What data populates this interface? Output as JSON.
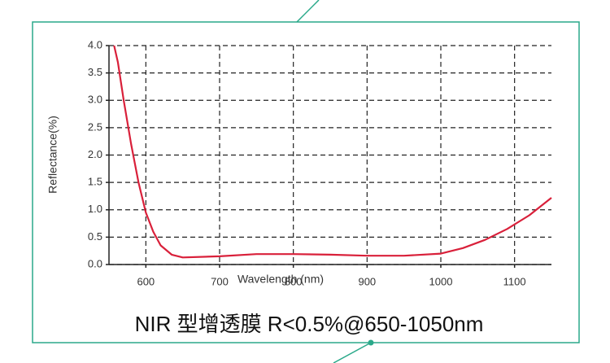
{
  "chart_data": {
    "type": "line",
    "caption": "NIR 型增透膜 R<0.5%@650-1050nm",
    "x_label": "Wavelength (nm)",
    "y_label": "Reflectance(%)",
    "x": [
      557,
      562,
      570,
      580,
      590,
      600,
      610,
      620,
      635,
      650,
      700,
      750,
      800,
      850,
      900,
      950,
      1000,
      1030,
      1060,
      1090,
      1120,
      1150
    ],
    "values": [
      4.0,
      3.7,
      3.0,
      2.2,
      1.5,
      0.95,
      0.6,
      0.35,
      0.18,
      0.13,
      0.15,
      0.19,
      0.19,
      0.18,
      0.16,
      0.16,
      0.2,
      0.3,
      0.45,
      0.65,
      0.9,
      1.22
    ],
    "color": "#d9203a",
    "xlim": [
      550,
      1150
    ],
    "xticks": [
      600,
      700,
      800,
      900,
      1000,
      1100
    ],
    "ylim": [
      0,
      4
    ],
    "yticks": [
      {
        "value": 0,
        "label": "0.0"
      },
      0.5,
      {
        "value": 1,
        "label": "1.0"
      },
      1.5,
      {
        "value": 2,
        "label": "2.0"
      },
      2.5,
      {
        "value": 3,
        "label": "3.0"
      },
      3.5,
      {
        "value": 4,
        "label": "4.0"
      }
    ],
    "grid": true
  }
}
